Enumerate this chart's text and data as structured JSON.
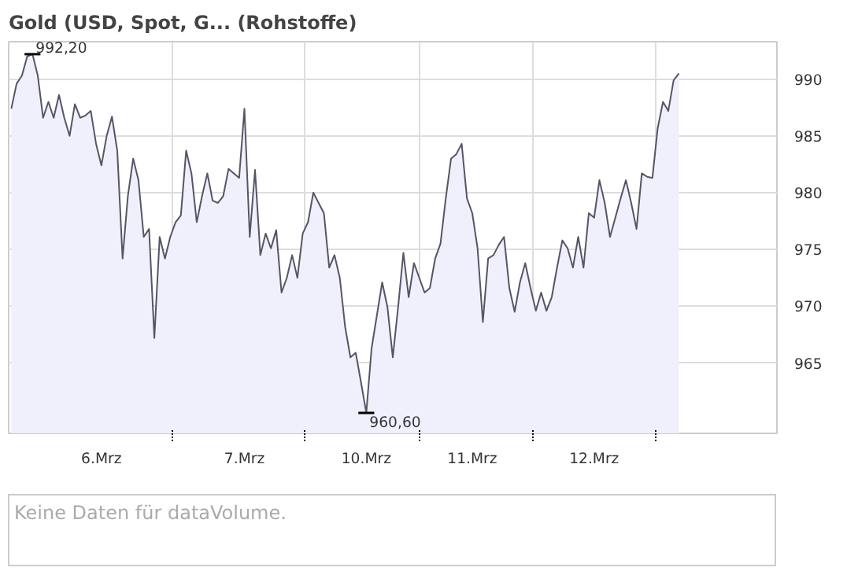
{
  "chart_data": {
    "type": "area",
    "title": "Gold (USD, Spot, G... (Rohstoffe)",
    "categories": [
      null,
      null,
      null,
      null,
      null,
      null,
      null,
      null,
      null,
      null,
      null,
      null,
      null,
      null,
      null,
      null,
      null,
      "6.Mrz",
      null,
      null,
      null,
      null,
      null,
      null,
      null,
      null,
      null,
      null,
      null,
      null,
      null,
      null,
      null,
      null,
      null,
      null,
      null,
      null,
      null,
      null,
      null,
      null,
      null,
      null,
      "7.Mrz",
      null,
      null,
      null,
      null,
      null,
      null,
      null,
      null,
      null,
      null,
      null,
      null,
      null,
      null,
      null,
      null,
      null,
      null,
      null,
      null,
      null,
      null,
      "10.Mrz",
      null,
      null,
      null,
      null,
      null,
      null,
      null,
      null,
      null,
      null,
      null,
      null,
      null,
      null,
      null,
      null,
      null,
      null,
      null,
      "11.Mrz",
      null,
      null,
      null,
      null,
      null,
      null,
      null,
      null,
      null,
      null,
      null,
      null,
      null,
      null,
      null,
      null,
      null,
      null,
      null,
      null,
      null,
      null,
      "12.Mrz",
      null,
      null,
      null,
      null,
      null,
      null,
      null,
      null,
      null,
      null,
      null,
      null,
      null,
      null,
      null,
      null,
      null,
      null,
      null,
      null,
      null,
      null,
      null,
      null,
      null,
      null,
      null,
      null,
      null,
      null,
      null,
      null,
      null,
      null
    ],
    "series": [
      {
        "color": "#555566",
        "values": [
          987.4,
          989.6,
          990.3,
          992.0,
          992.2,
          990.3,
          986.6,
          988.0,
          986.6,
          988.6,
          986.6,
          985.0,
          987.8,
          986.6,
          986.8,
          987.2,
          984.3,
          982.4,
          985.0,
          986.7,
          983.7,
          974.2,
          979.7,
          983.0,
          981.1,
          976.1,
          976.8,
          967.2,
          976.1,
          974.2,
          976.1,
          977.4,
          978.0,
          983.7,
          981.7,
          977.4,
          979.7,
          981.7,
          979.3,
          979.1,
          979.7,
          982.1,
          981.7,
          981.3,
          987.4,
          976.1,
          982.0,
          974.5,
          976.4,
          975.1,
          976.7,
          971.2,
          972.5,
          974.5,
          972.5,
          976.4,
          977.4,
          980.0,
          979.1,
          978.2,
          973.4,
          974.5,
          972.5,
          968.2,
          965.5,
          965.9,
          963.3,
          960.6,
          966.3,
          969.2,
          972.1,
          969.9,
          965.5,
          969.9,
          974.7,
          970.8,
          973.8,
          972.5,
          971.2,
          971.6,
          974.2,
          975.5,
          979.5,
          983.0,
          983.4,
          984.3,
          979.5,
          978.2,
          975.1,
          968.6,
          974.2,
          974.5,
          975.4,
          976.1,
          971.6,
          969.5,
          972.1,
          973.8,
          971.6,
          969.6,
          971.2,
          969.6,
          970.8,
          973.4,
          975.8,
          975.1,
          973.4,
          976.1,
          973.4,
          978.2,
          977.8,
          981.1,
          979.1,
          976.1,
          977.8,
          979.5,
          981.1,
          979.1,
          976.8,
          981.7,
          981.4,
          981.3,
          985.7,
          988.0,
          987.2,
          989.9,
          990.5,
          null,
          null,
          null,
          null,
          null,
          null,
          null,
          null,
          null,
          null,
          null,
          null,
          null,
          null,
          null,
          null,
          null,
          null
        ]
      }
    ],
    "ylim": [
      958.8,
      993.3
    ],
    "yticks": [
      965,
      970,
      975,
      980,
      985,
      990
    ],
    "grid": true,
    "annotations": [
      "992,20",
      "960,60",
      "Keine Daten für dataVolume."
    ]
  }
}
